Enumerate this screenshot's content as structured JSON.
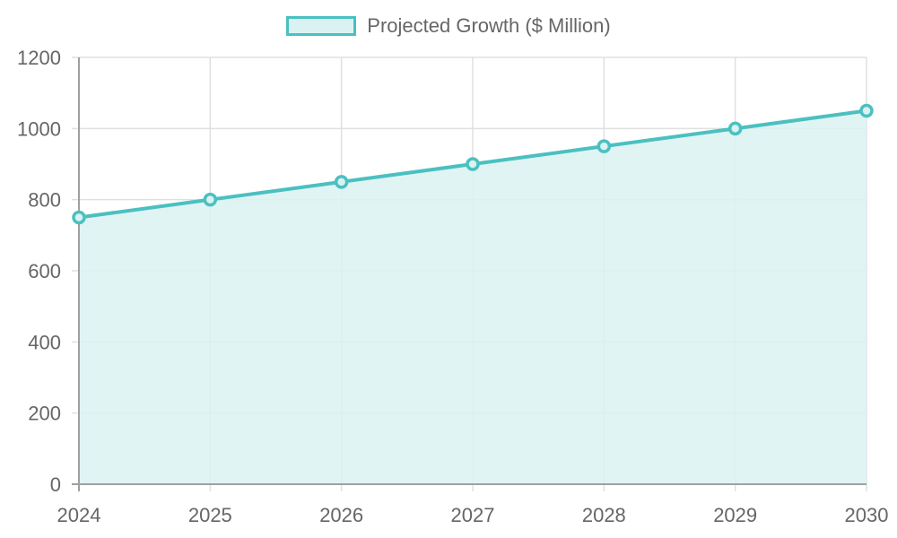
{
  "legend": {
    "label": "Projected Growth ($ Million)"
  },
  "colors": {
    "line": "#4bc0c0",
    "fill": "#dbf2f2",
    "grid": "#e0e0e0",
    "axis": "#a0a0a0",
    "text": "#666666"
  },
  "chart_data": {
    "type": "area",
    "categories": [
      "2024",
      "2025",
      "2026",
      "2027",
      "2028",
      "2029",
      "2030"
    ],
    "series": [
      {
        "name": "Projected Growth ($ Million)",
        "values": [
          750,
          800,
          850,
          900,
          950,
          1000,
          1050
        ]
      }
    ],
    "ylim": [
      0,
      1200
    ],
    "yticks": [
      0,
      200,
      400,
      600,
      800,
      1000,
      1200
    ],
    "grid": true,
    "legend_position": "top"
  }
}
